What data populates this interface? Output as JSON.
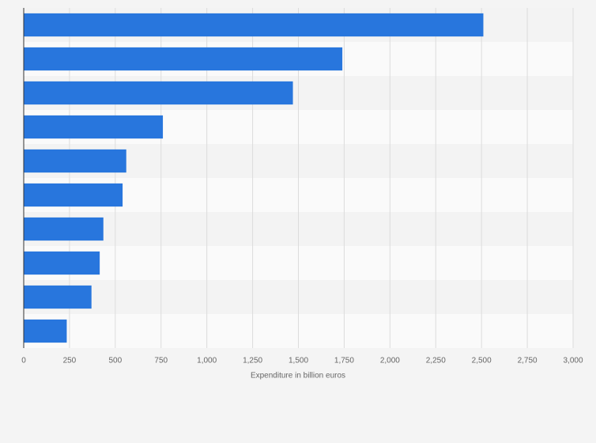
{
  "chart_data": {
    "type": "bar",
    "orientation": "horizontal",
    "x_label": "Expenditure in billion euros",
    "categories": [
      null,
      null,
      null,
      null,
      null,
      null,
      null,
      null,
      null,
      null
    ],
    "values": [
      2510,
      1740,
      1470,
      760,
      560,
      540,
      435,
      415,
      370,
      235
    ],
    "color": "#2876dd",
    "xlim": [
      0,
      3000
    ],
    "xticks": [
      0,
      250,
      500,
      750,
      {
        "value": 1000,
        "label": "1,000"
      },
      {
        "value": 1250,
        "label": "1,250"
      },
      {
        "value": 1500,
        "label": "1,500"
      },
      {
        "value": 1750,
        "label": "1,750"
      },
      {
        "value": 2000,
        "label": "2,000"
      },
      {
        "value": 2250,
        "label": "2,250"
      },
      {
        "value": 2500,
        "label": "2,500"
      },
      {
        "value": 2750,
        "label": "2,750"
      },
      {
        "value": 3000,
        "label": "3,000"
      }
    ],
    "grid": true
  }
}
